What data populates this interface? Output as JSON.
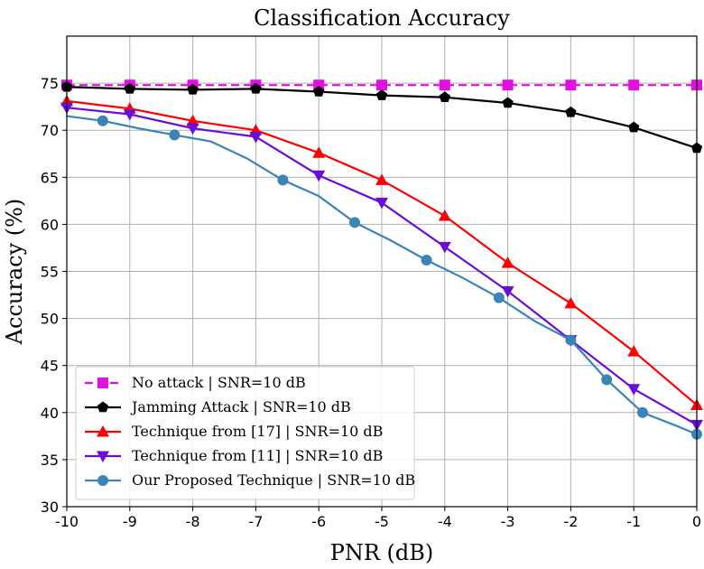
{
  "chart_data": {
    "type": "line",
    "title": "Classification Accuracy",
    "xlabel": "PNR (dB)",
    "ylabel": "Accuracy (%)",
    "xlim": [
      -10,
      0
    ],
    "ylim": [
      30,
      80
    ],
    "xticks": [
      -10,
      -9,
      -8,
      -7,
      -6,
      -5,
      -4,
      -3,
      -2,
      -1,
      0
    ],
    "xtick_labels": [
      "-10",
      "-9",
      "-8",
      "-7",
      "-6",
      "-5",
      "-4",
      "-3",
      "-2",
      "-1",
      "0"
    ],
    "yticks": [
      30,
      35,
      40,
      45,
      50,
      55,
      60,
      65,
      70,
      75
    ],
    "ytick_labels": [
      "30",
      "35",
      "40",
      "45",
      "50",
      "55",
      "60",
      "65",
      "70",
      "75"
    ],
    "grid": true,
    "legend_position": "lower-left",
    "series": [
      {
        "name": "No attack | SNR=10 dB",
        "color": "#e010e0",
        "marker": "square",
        "line_style": "dashed",
        "x": [
          -10,
          -9,
          -8,
          -7,
          -6,
          -5,
          -4,
          -3,
          -2,
          -1,
          0
        ],
        "y": [
          74.8,
          74.8,
          74.8,
          74.8,
          74.8,
          74.8,
          74.8,
          74.8,
          74.8,
          74.8,
          74.8
        ]
      },
      {
        "name": "Jamming Attack | SNR=10 dB",
        "color": "#000000",
        "marker": "pentagon",
        "line_style": "solid",
        "x": [
          -10,
          -9,
          -8,
          -7,
          -6,
          -5,
          -4,
          -3,
          -2,
          -1,
          0
        ],
        "y": [
          74.6,
          74.4,
          74.3,
          74.4,
          74.1,
          73.7,
          73.5,
          72.9,
          71.9,
          70.3,
          68.1
        ]
      },
      {
        "name": "Technique from [17] | SNR=10 dB",
        "color": "#ff0000",
        "marker": "triangle-up",
        "line_style": "solid",
        "x": [
          -10,
          -9,
          -8,
          -7,
          -6,
          -5,
          -4,
          -3,
          -2,
          -1,
          0
        ],
        "y": [
          73.1,
          72.3,
          71.0,
          70.0,
          67.6,
          64.7,
          60.9,
          55.9,
          51.6,
          46.5,
          40.8
        ]
      },
      {
        "name": "Technique from [11] | SNR=10 dB",
        "color": "#6a0dd8",
        "marker": "triangle-down",
        "line_style": "solid",
        "x": [
          -10,
          -9,
          -8,
          -7,
          -6,
          -5,
          -4,
          -3,
          -2,
          -1,
          0
        ],
        "y": [
          72.4,
          71.7,
          70.2,
          69.3,
          65.2,
          62.3,
          57.6,
          52.9,
          47.7,
          42.5,
          38.7
        ]
      },
      {
        "name": "Our Proposed Technique | SNR=10 dB",
        "color": "#3a84b8",
        "marker": "circle",
        "line_style": "solid",
        "x": [
          -10,
          -9.43,
          -8.86,
          -8.29,
          -7.71,
          -7.14,
          -6.57,
          -6,
          -5.43,
          -4.86,
          -4.29,
          -3.71,
          -3.14,
          -2.57,
          -2,
          -1.43,
          -0.86,
          -0.29,
          0
        ],
        "y": [
          71.5,
          71.0,
          70.2,
          69.5,
          68.8,
          67.0,
          64.7,
          63.0,
          60.2,
          58.3,
          56.2,
          54.3,
          52.2,
          49.7,
          47.7,
          43.5,
          40.0,
          38.5,
          37.7
        ],
        "marker_indices": [
          1,
          3,
          6,
          8,
          10,
          12,
          14,
          15,
          16,
          18
        ]
      }
    ]
  }
}
